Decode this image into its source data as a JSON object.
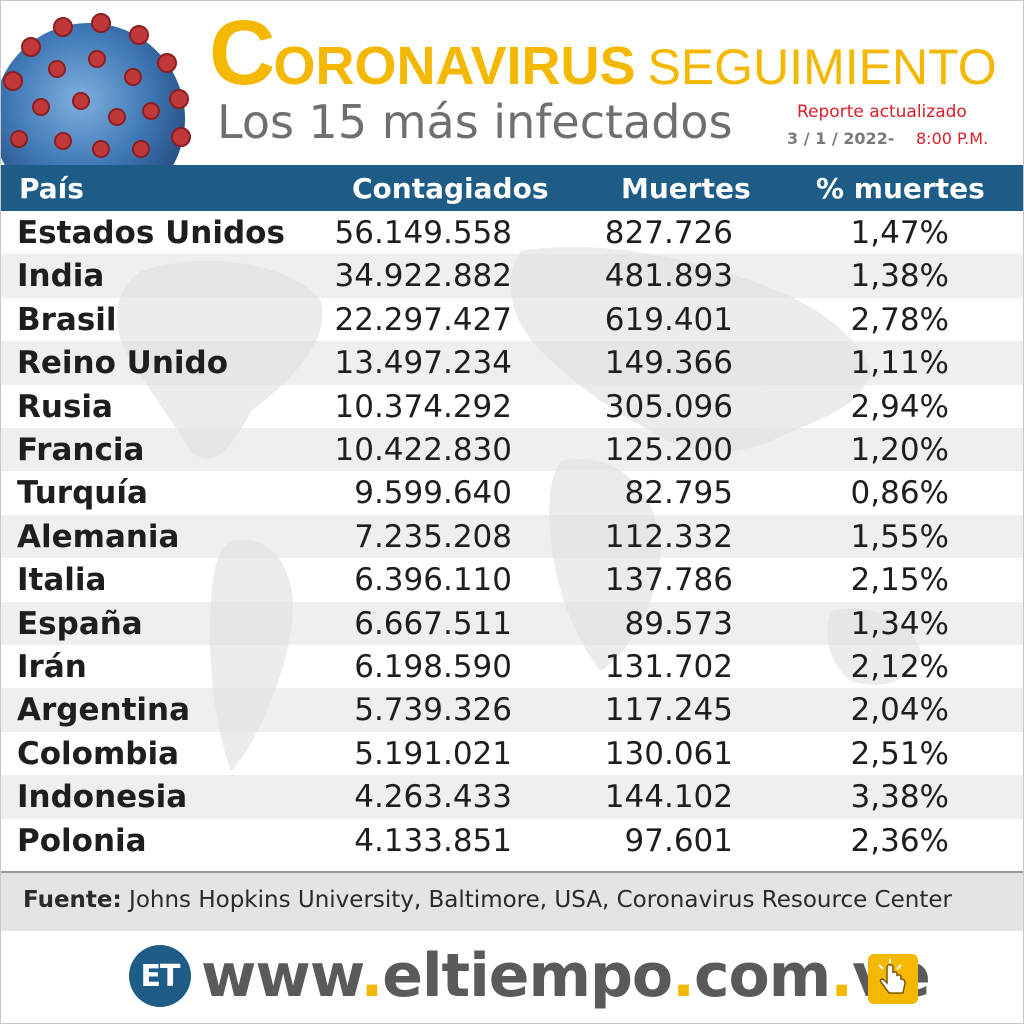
{
  "header": {
    "title_cap": "C",
    "title_rest": "ORONAVIRUS",
    "title_sub": "SEGUIMIENTO",
    "subtitle": "Los 15 más infectados",
    "report_label": "Reporte actualizado",
    "report_date": "3 / 1 / 2022-",
    "report_time": "8:00 P.M."
  },
  "table": {
    "columns": [
      "País",
      "Contagiados",
      "Muertes",
      "% muertes"
    ],
    "rows": [
      {
        "country": "Estados Unidos",
        "cases": "56.149.558",
        "deaths": "827.726",
        "pct": "1,47%"
      },
      {
        "country": "India",
        "cases": "34.922.882",
        "deaths": "481.893",
        "pct": "1,38%"
      },
      {
        "country": "Brasil",
        "cases": "22.297.427",
        "deaths": "619.401",
        "pct": "2,78%"
      },
      {
        "country": "Reino Unido",
        "cases": "13.497.234",
        "deaths": "149.366",
        "pct": "1,11%"
      },
      {
        "country": "Rusia",
        "cases": "10.374.292",
        "deaths": "305.096",
        "pct": "2,94%"
      },
      {
        "country": "Francia",
        "cases": "10.422.830",
        "deaths": "125.200",
        "pct": "1,20%"
      },
      {
        "country": "Turquía",
        "cases": "9.599.640",
        "deaths": "82.795",
        "pct": "0,86%"
      },
      {
        "country": "Alemania",
        "cases": "7.235.208",
        "deaths": "112.332",
        "pct": "1,55%"
      },
      {
        "country": "Italia",
        "cases": "6.396.110",
        "deaths": "137.786",
        "pct": "2,15%"
      },
      {
        "country": "España",
        "cases": "6.667.511",
        "deaths": "89.573",
        "pct": "1,34%"
      },
      {
        "country": "Irán",
        "cases": "6.198.590",
        "deaths": "131.702",
        "pct": "2,12%"
      },
      {
        "country": "Argentina",
        "cases": "5.739.326",
        "deaths": "117.245",
        "pct": "2,04%"
      },
      {
        "country": "Colombia",
        "cases": "5.191.021",
        "deaths": "130.061",
        "pct": "2,51%"
      },
      {
        "country": "Indonesia",
        "cases": "4.263.433",
        "deaths": "144.102",
        "pct": "3,38%"
      },
      {
        "country": "Polonia",
        "cases": "4.133.851",
        "deaths": "97.601",
        "pct": "2,36%"
      }
    ]
  },
  "source": {
    "label": "Fuente:",
    "text": "Johns Hopkins University, Baltimore, USA, Coronavirus Resource Center"
  },
  "footer": {
    "logo_text": "ET",
    "url_parts": [
      "www",
      ".",
      "eltiempo",
      ".",
      "com",
      ".",
      "ve"
    ],
    "hand_icon": "pointing-hand-icon"
  },
  "colors": {
    "title_yellow": "#f5b800",
    "header_blue": "#1d5c86",
    "report_red": "#d8202a",
    "subtitle_gray": "#6f6f6f"
  }
}
